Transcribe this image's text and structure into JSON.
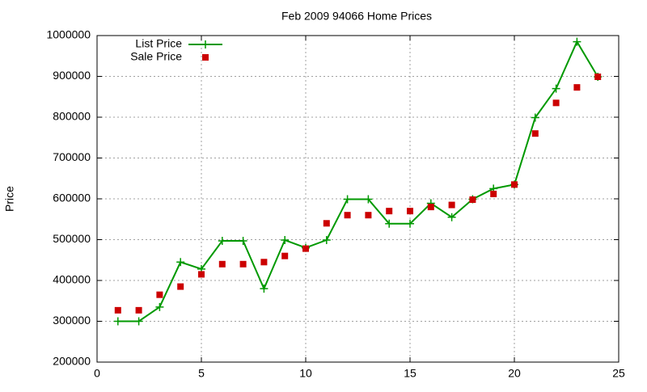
{
  "chart_data": {
    "type": "line",
    "title": "Feb 2009 94066 Home Prices",
    "y_label": "Price",
    "x": [
      1,
      2,
      3,
      4,
      5,
      6,
      7,
      8,
      9,
      10,
      11,
      12,
      13,
      14,
      15,
      16,
      17,
      18,
      19,
      20,
      21,
      22,
      23,
      24
    ],
    "series": [
      {
        "name": "List Price",
        "color": "#009900",
        "style": "linespoints",
        "values": [
          300000,
          300000,
          335000,
          445000,
          428000,
          497000,
          497000,
          380000,
          499000,
          480000,
          499000,
          599000,
          599000,
          539000,
          539000,
          589000,
          555000,
          599000,
          625000,
          635000,
          799000,
          870000,
          985000,
          899000
        ]
      },
      {
        "name": "Sale Price",
        "color": "#cc0000",
        "style": "points",
        "values": [
          327000,
          327000,
          365000,
          385000,
          415000,
          440000,
          440000,
          445000,
          460000,
          478000,
          540000,
          560000,
          560000,
          570000,
          570000,
          580000,
          585000,
          598000,
          612000,
          635000,
          760000,
          835000,
          873000,
          899000
        ]
      }
    ],
    "xlim": [
      0,
      25
    ],
    "xticks": [
      0,
      5,
      10,
      15,
      20,
      25
    ],
    "ylim": [
      200000,
      1000000
    ],
    "yticks": [
      200000,
      300000,
      400000,
      500000,
      600000,
      700000,
      800000,
      900000,
      1000000
    ],
    "grid": true,
    "legend": "top-left"
  }
}
